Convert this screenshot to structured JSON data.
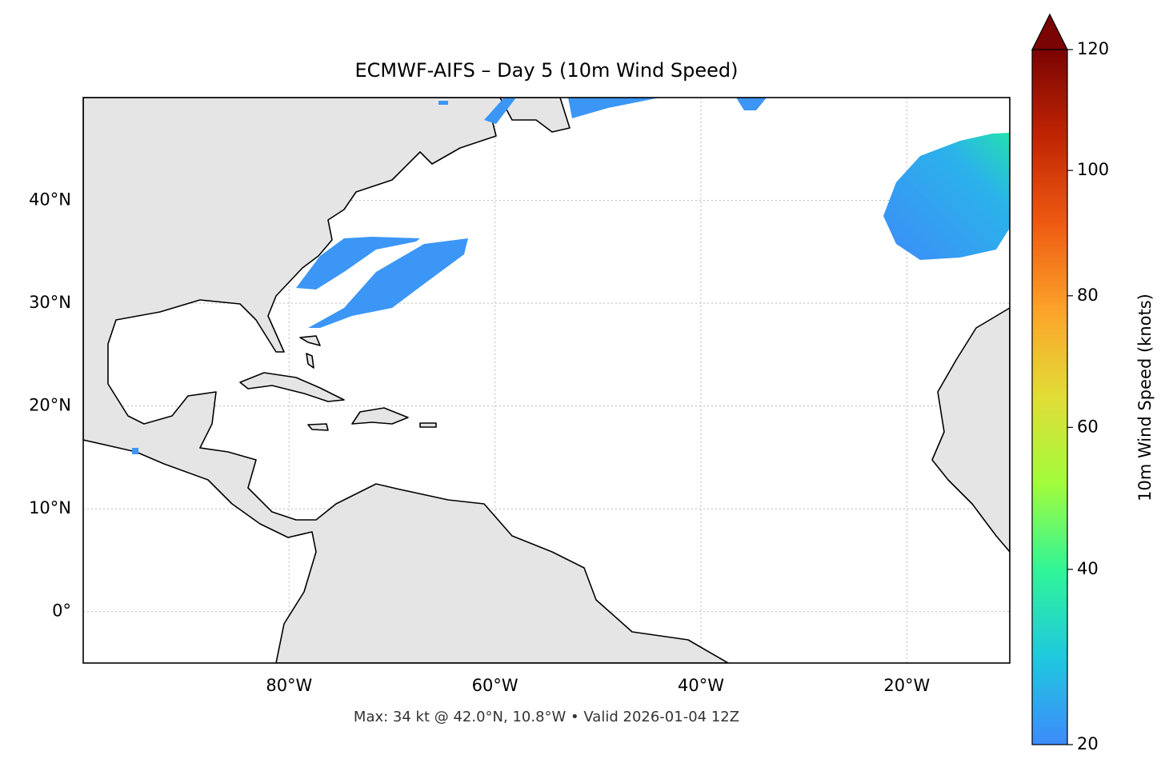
{
  "map": {
    "title": "ECMWF-AIFS – Day 5 (10m Wind Speed)",
    "footer": "Max: 34 kt @ 42.0°N, 10.8°W • Valid 2026-01-04 12Z",
    "xlim": [
      -100,
      -10
    ],
    "ylim": [
      -5,
      50
    ],
    "xticks": [
      {
        "value": -80,
        "label": "80°W"
      },
      {
        "value": -60,
        "label": "60°W"
      },
      {
        "value": -40,
        "label": "40°W"
      },
      {
        "value": -20,
        "label": "20°W"
      }
    ],
    "yticks": [
      {
        "value": 0,
        "label": "0°"
      },
      {
        "value": 10,
        "label": "10°N"
      },
      {
        "value": 20,
        "label": "20°N"
      },
      {
        "value": 30,
        "label": "30°N"
      },
      {
        "value": 40,
        "label": "40°N"
      }
    ],
    "grid": true,
    "colorbar": {
      "label": "10m Wind Speed (knots)",
      "lim": [
        20,
        120
      ],
      "ticks": [
        20,
        40,
        60,
        80,
        100,
        120
      ],
      "colors": [
        "#3e8bfb",
        "#1fc8de",
        "#2ff598",
        "#a2fc3c",
        "#e1dd37",
        "#fca32a",
        "#ee5a12",
        "#c02503",
        "#7a0403"
      ]
    }
  }
}
